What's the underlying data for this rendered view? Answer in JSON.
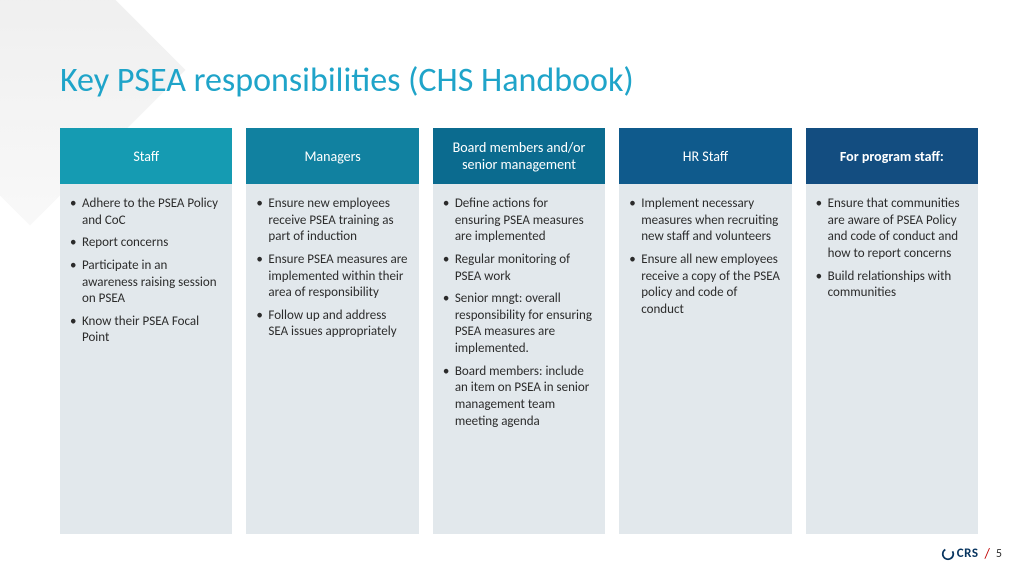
{
  "title": {
    "text": "Key PSEA responsibilities (CHS Handbook)",
    "color": "#1fa4c9",
    "fontsize": 34
  },
  "layout": {
    "column_gap": 14,
    "body_bg": "#e2e8ec",
    "body_text_color": "#2b2b2b",
    "body_fontsize": 13,
    "header_fontsize": 14,
    "header_min_height": 56
  },
  "columns": [
    {
      "header": "Staff",
      "header_bg": "#159bb2",
      "header_weight": "400",
      "body_min_height": 350,
      "items": [
        "Adhere to the PSEA Policy and CoC",
        "Report concerns",
        "Participate in an awareness raising session on PSEA",
        "Know their PSEA Focal Point"
      ]
    },
    {
      "header": "Managers",
      "header_bg": "#1181a0",
      "header_weight": "400",
      "body_min_height": 350,
      "items": [
        "Ensure new employees receive PSEA training as part of induction",
        "Ensure PSEA measures are implemented within their area of responsibility",
        "Follow up and address SEA issues appropriately"
      ]
    },
    {
      "header": "Board members and/or senior management",
      "header_bg": "#0b6b8f",
      "header_weight": "400",
      "body_min_height": 350,
      "items": [
        "Define actions for ensuring PSEA measures are implemented",
        "Regular monitoring of PSEA work",
        "Senior mngt: overall responsibility for ensuring PSEA measures are implemented.",
        "Board members: include an item on PSEA in senior management team meeting agenda"
      ]
    },
    {
      "header": "HR Staff",
      "header_bg": "#0f5a8c",
      "header_weight": "400",
      "body_min_height": 350,
      "items": [
        "Implement necessary measures when recruiting new staff and volunteers",
        "Ensure all new employees receive a copy of the PSEA policy and code of conduct"
      ]
    },
    {
      "header": "For program staff:",
      "header_bg": "#134d80",
      "header_weight": "700",
      "body_min_height": 350,
      "items": [
        "Ensure that communities are aware of PSEA Policy and code of conduct and how to report concerns",
        "Build relationships with communities"
      ]
    }
  ],
  "footer": {
    "logo_text": "CRS",
    "logo_color": "#07345f",
    "slash": "/",
    "slash_color": "#c00000",
    "page_number": "5"
  }
}
